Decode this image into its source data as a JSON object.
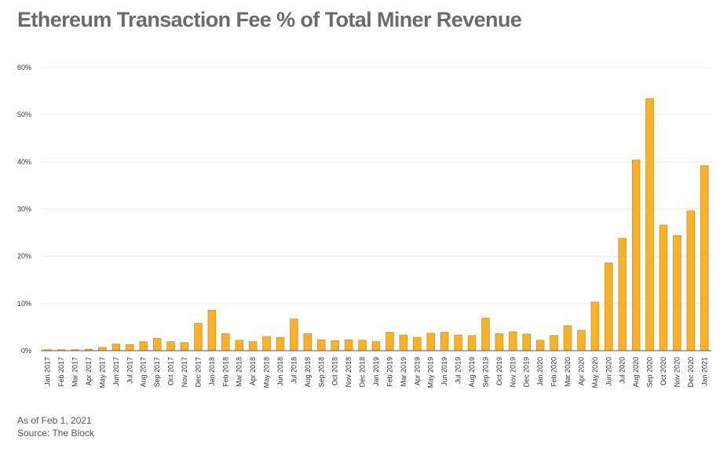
{
  "title": "Ethereum Transaction Fee % of Total Miner Revenue",
  "footnote": {
    "as_of": "As of Feb 1, 2021",
    "source": "Source: The Block"
  },
  "colors": {
    "bar_fill": "#F7B12A",
    "bar_stroke": "#C98A10",
    "title": "#6b6b6b"
  },
  "chart_data": {
    "type": "bar",
    "title": "Ethereum Transaction Fee % of Total Miner Revenue",
    "xlabel": "",
    "ylabel": "",
    "ylim": [
      0,
      60
    ],
    "yticks": [
      0,
      10,
      20,
      30,
      40,
      50,
      60
    ],
    "ytick_labels": [
      "0%",
      "10%",
      "20%",
      "30%",
      "40%",
      "50%",
      "60%"
    ],
    "grid": true,
    "categories": [
      "Jan 2017",
      "Feb 2017",
      "Mar 2017",
      "Apr 2017",
      "May 2017",
      "Jun 2017",
      "Jul 2017",
      "Aug 2017",
      "Sep 2017",
      "Oct 2017",
      "Nov 2017",
      "Dec 2017",
      "Jan 2018",
      "Feb 2018",
      "Mar 2018",
      "Apr 2018",
      "May 2018",
      "Jun 2018",
      "Jul 2018",
      "Aug 2018",
      "Sep 2018",
      "Oct 2018",
      "Nov 2018",
      "Dec 2018",
      "Jan 2019",
      "Feb 2019",
      "Mar 2019",
      "Apr 2019",
      "May 2019",
      "Jun 2019",
      "Jul 2019",
      "Aug 2019",
      "Sep 2019",
      "Oct 2019",
      "Nov 2019",
      "Dec 2019",
      "Jan 2020",
      "Feb 2020",
      "Mar 2020",
      "Apr 2020",
      "May 2020",
      "Jun 2020",
      "Jul 2020",
      "Aug 2020",
      "Sep 2020",
      "Oct 2020",
      "Nov 2020",
      "Dec 2020",
      "Jan 2021"
    ],
    "values": [
      0.2,
      0.2,
      0.2,
      0.3,
      0.7,
      1.4,
      1.3,
      1.9,
      2.6,
      1.9,
      1.7,
      5.8,
      8.6,
      3.6,
      2.2,
      1.9,
      3.0,
      2.8,
      6.7,
      3.6,
      2.3,
      2.1,
      2.3,
      2.2,
      1.9,
      3.9,
      3.3,
      2.8,
      3.7,
      3.9,
      3.3,
      3.2,
      6.9,
      3.6,
      4.0,
      3.5,
      2.2,
      3.2,
      5.3,
      4.3,
      10.3,
      18.6,
      23.8,
      40.4,
      53.4,
      26.6,
      24.4,
      29.6,
      39.2
    ]
  }
}
